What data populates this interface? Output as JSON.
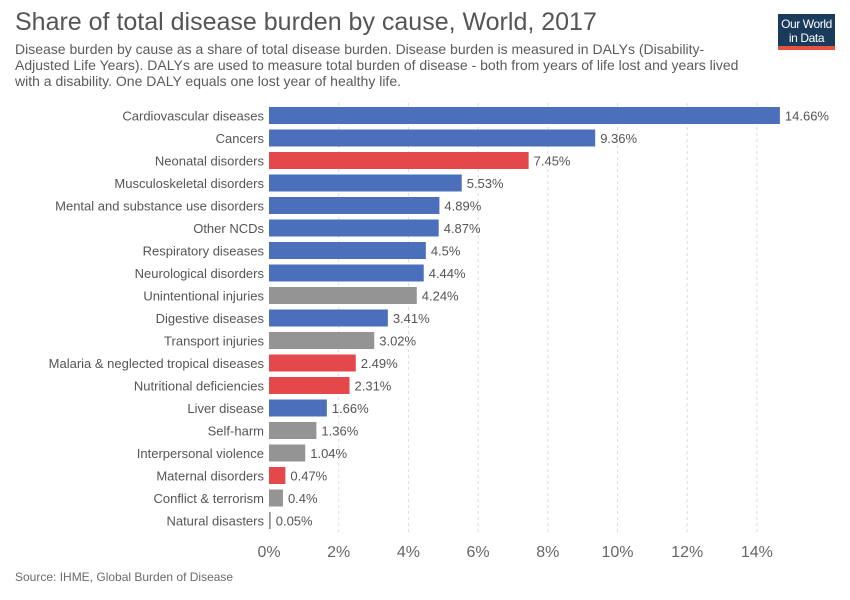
{
  "header": {
    "title": "Share of total disease burden by cause, World, 2017",
    "subtitle": "Disease burden by cause as a share of total disease burden. Disease burden is measured in DALYs (Disability-Adjusted Life Years). DALYs are used to measure total burden of disease - both from years of life lost and years lived with a disability. One DALY equals one lost year of healthy life."
  },
  "logo": {
    "line1": "Our World",
    "line2": "in Data"
  },
  "footer": {
    "source": "Source: IHME, Global Burden of Disease"
  },
  "colors": {
    "ncd": "#4c6fbb",
    "communicable": "#e4484a",
    "injury": "#949494",
    "grid": "#dddddd",
    "label": "#555555",
    "axis": "#666666"
  },
  "chart_data": {
    "type": "bar",
    "orientation": "horizontal",
    "value_suffix": "%",
    "xlim": [
      0,
      15
    ],
    "xticks": [
      0,
      2,
      4,
      6,
      8,
      10,
      12,
      14
    ],
    "xtick_labels": [
      "0%",
      "2%",
      "4%",
      "6%",
      "8%",
      "10%",
      "12%",
      "14%"
    ],
    "grid": "vertical dashed",
    "categories": [
      "Cardiovascular diseases",
      "Cancers",
      "Neonatal disorders",
      "Musculoskeletal disorders",
      "Mental and substance use disorders",
      "Other NCDs",
      "Respiratory diseases",
      "Neurological disorders",
      "Unintentional injuries",
      "Digestive diseases",
      "Transport injuries",
      "Malaria & neglected tropical diseases",
      "Nutritional deficiencies",
      "Liver disease",
      "Self-harm",
      "Interpersonal violence",
      "Maternal disorders",
      "Conflict & terrorism",
      "Natural disasters"
    ],
    "values": [
      14.66,
      9.36,
      7.45,
      5.53,
      4.89,
      4.87,
      4.5,
      4.44,
      4.24,
      3.41,
      3.02,
      2.49,
      2.31,
      1.66,
      1.36,
      1.04,
      0.47,
      0.4,
      0.05
    ],
    "value_labels": [
      "14.66%",
      "9.36%",
      "7.45%",
      "5.53%",
      "4.89%",
      "4.87%",
      "4.5%",
      "4.44%",
      "4.24%",
      "3.41%",
      "3.02%",
      "2.49%",
      "2.31%",
      "1.66%",
      "1.36%",
      "1.04%",
      "0.47%",
      "0.4%",
      "0.05%"
    ],
    "bar_groups": [
      "ncd",
      "ncd",
      "communicable",
      "ncd",
      "ncd",
      "ncd",
      "ncd",
      "ncd",
      "injury",
      "ncd",
      "injury",
      "communicable",
      "communicable",
      "ncd",
      "injury",
      "injury",
      "communicable",
      "injury",
      "injury"
    ]
  }
}
